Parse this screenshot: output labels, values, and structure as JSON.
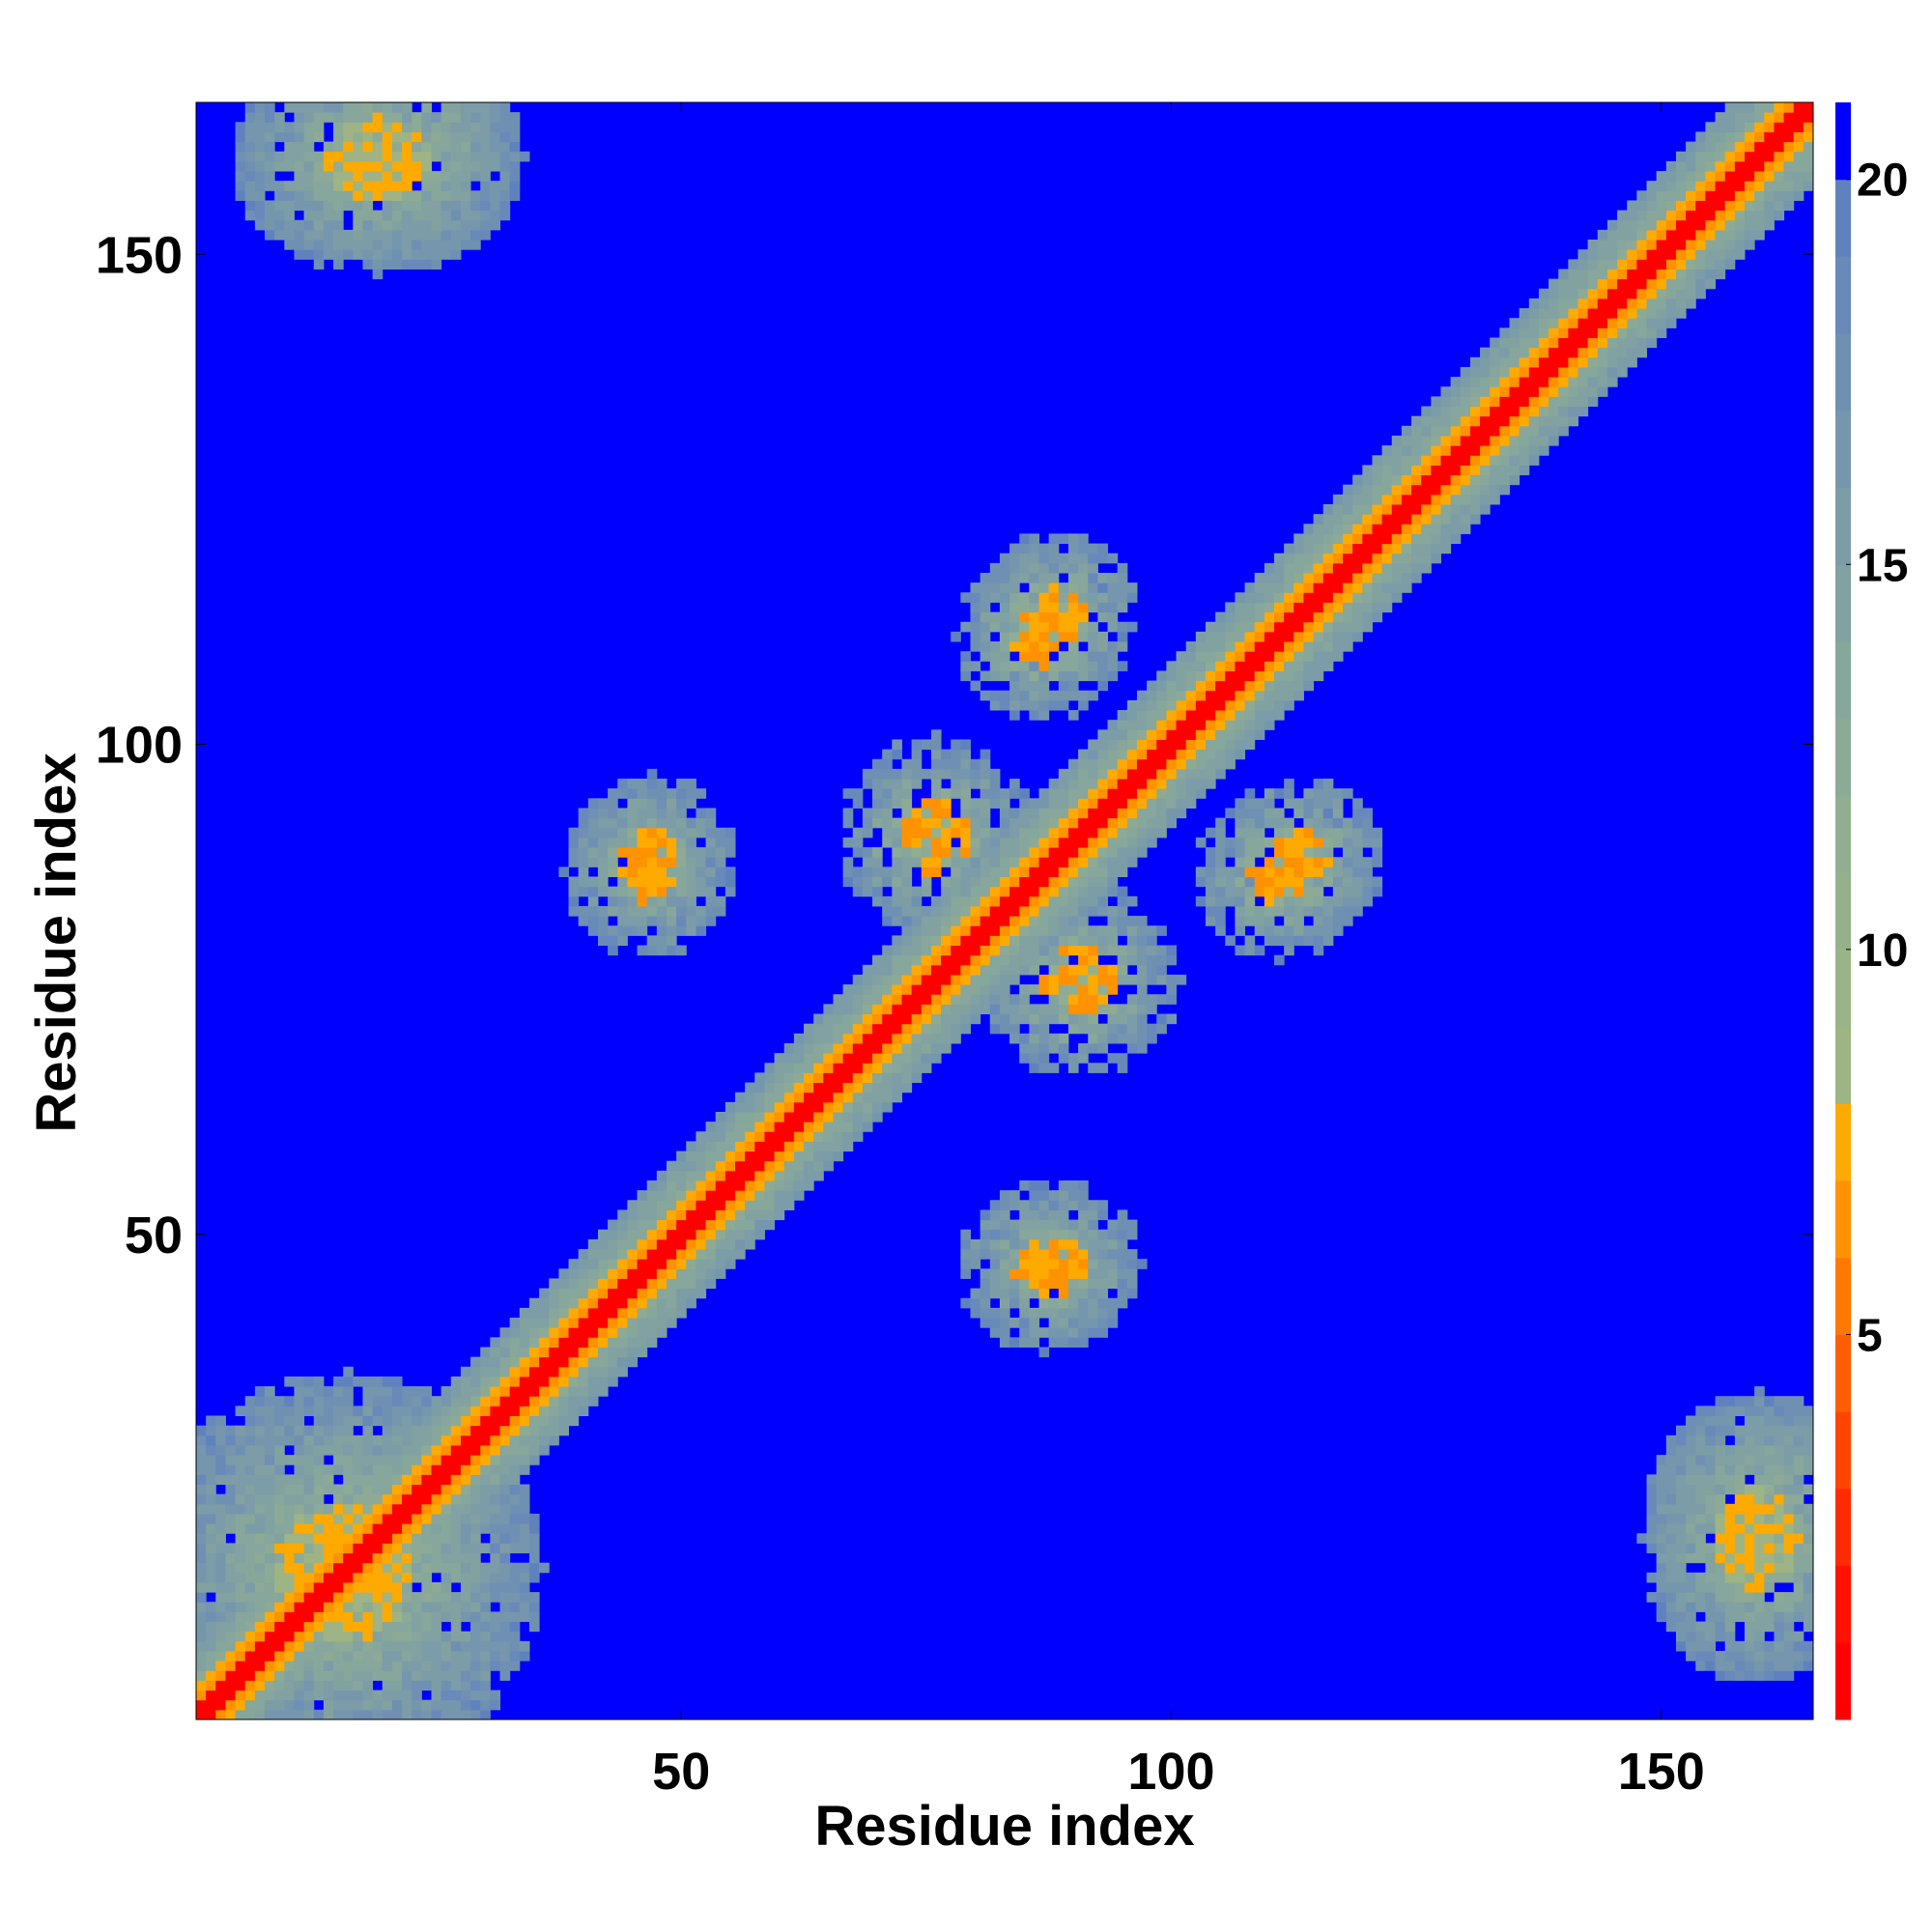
{
  "chart_data": {
    "type": "heatmap",
    "xlabel": "Residue index",
    "ylabel": "Residue index",
    "xlim": [
      1,
      165
    ],
    "ylim": [
      1,
      165
    ],
    "x_ticks": [
      50,
      100,
      150
    ],
    "y_ticks": [
      50,
      100,
      150
    ],
    "x_tick_labels": [
      "50",
      "100",
      "150"
    ],
    "y_tick_labels": [
      "50",
      "100",
      "150"
    ],
    "colorbar": {
      "range": [
        0,
        21
      ],
      "ticks": [
        5,
        10,
        15,
        20
      ],
      "tick_labels": [
        "5",
        "10",
        "15",
        "20"
      ],
      "bins": [
        {
          "max": 1,
          "color": "#ff0000"
        },
        {
          "max": 2,
          "color": "#ff1100"
        },
        {
          "max": 3,
          "color": "#ff2a00"
        },
        {
          "max": 4,
          "color": "#ff4400"
        },
        {
          "max": 5,
          "color": "#ff5e00"
        },
        {
          "max": 6,
          "color": "#ff7800"
        },
        {
          "max": 7,
          "color": "#ff9200"
        },
        {
          "max": 8,
          "color": "#ffaa00"
        },
        {
          "max": 9,
          "color": "#9eb484"
        },
        {
          "max": 10,
          "color": "#9ab388"
        },
        {
          "max": 11,
          "color": "#95b18c"
        },
        {
          "max": 12,
          "color": "#91ae91"
        },
        {
          "max": 13,
          "color": "#8caa96"
        },
        {
          "max": 14,
          "color": "#87a69c"
        },
        {
          "max": 15,
          "color": "#82a1a1"
        },
        {
          "max": 16,
          "color": "#7c9ca7"
        },
        {
          "max": 17,
          "color": "#7696ad"
        },
        {
          "max": 18,
          "color": "#6f90b3"
        },
        {
          "max": 19,
          "color": "#6889b9"
        },
        {
          "max": 20,
          "color": "#5f82bf"
        },
        {
          "max": 21,
          "color": "#0000ff"
        }
      ]
    },
    "contact_regions": [
      {
        "description": "main diagonal band",
        "from": [
          1,
          1
        ],
        "to": [
          165,
          165
        ],
        "min_value": 1
      },
      {
        "description": "antiparallel contact",
        "residues_x": [
          72,
          80
        ],
        "residues_y": [
          86,
          95
        ],
        "min_value": 6
      },
      {
        "description": "antiparallel contact",
        "residues_x": [
          44,
          50
        ],
        "residues_y": [
          86,
          91
        ],
        "min_value": 6
      },
      {
        "description": "antiparallel contact",
        "residues_x": [
          84,
          90
        ],
        "residues_y": [
          44,
          49
        ],
        "min_value": 6
      },
      {
        "description": "antiparallel contact",
        "residues_x": [
          84,
          89
        ],
        "residues_y": [
          108,
          114
        ],
        "min_value": 6
      },
      {
        "description": "antiparallel contact",
        "residues_x": [
          110,
          116
        ],
        "residues_y": [
          86,
          91
        ],
        "min_value": 6
      },
      {
        "description": "contact cluster",
        "residues_x": [
          2,
          30
        ],
        "residues_y": [
          1,
          30
        ],
        "min_value": 7
      },
      {
        "description": "contact cluster",
        "residues_x": [
          11,
          28
        ],
        "residues_y": [
          154,
          166
        ],
        "min_value": 7
      },
      {
        "description": "contact cluster",
        "residues_x": [
          154,
          165
        ],
        "residues_y": [
          10,
          28
        ],
        "min_value": 7
      }
    ],
    "grid": false
  }
}
